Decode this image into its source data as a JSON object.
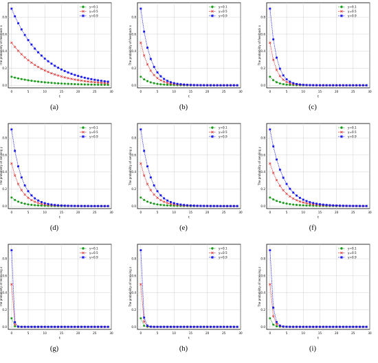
{
  "chart_data": [
    {
      "type": "line",
      "caption": "(a)",
      "ylabel": "The probability of feedback x",
      "xlabel": "t",
      "xlim": [
        -1,
        30
      ],
      "ylim": [
        -0.03,
        0.97
      ],
      "xticks": [
        "0",
        "5",
        "10",
        "15",
        "20",
        "25",
        "30"
      ],
      "yticks": [
        "0.0",
        "0.2",
        "0.4",
        "0.6",
        "0.8"
      ],
      "grid": true,
      "legend_position": "top-right",
      "decay_ratio": 0.9,
      "series": [
        {
          "name": "y=0.1",
          "color": "#1a9a1a",
          "marker": "circle",
          "start": 0.1,
          "values": [
            0.1,
            0.09,
            0.081,
            0.0729,
            0.0656,
            0.059,
            0.0531,
            0.0478,
            0.043,
            0.0387,
            0.0349,
            0.0314,
            0.0282,
            0.0254,
            0.0229,
            0.0206,
            0.0185,
            0.0167,
            0.015,
            0.0135,
            0.0122,
            0.0109,
            0.0098,
            0.0089,
            0.008,
            0.0072,
            0.0065,
            0.0058,
            0.0052,
            0.0047
          ]
        },
        {
          "name": "y=0.5",
          "color": "#e02020",
          "marker": "x",
          "start": 0.5,
          "values": [
            0.5,
            0.45,
            0.405,
            0.3645,
            0.328,
            0.2952,
            0.2657,
            0.2391,
            0.2152,
            0.1937,
            0.1743,
            0.1569,
            0.1412,
            0.1271,
            0.1144,
            0.1029,
            0.0926,
            0.0834,
            0.075,
            0.0675,
            0.0608,
            0.0547,
            0.0492,
            0.0443,
            0.0399,
            0.0359,
            0.0323,
            0.0291,
            0.0262,
            0.0236
          ]
        },
        {
          "name": "y=0.9",
          "color": "#1a1af0",
          "marker": "square",
          "start": 0.9,
          "values": [
            0.9,
            0.81,
            0.729,
            0.6561,
            0.5905,
            0.5314,
            0.4783,
            0.4305,
            0.3874,
            0.3487,
            0.3138,
            0.2824,
            0.2542,
            0.2288,
            0.2059,
            0.1853,
            0.1668,
            0.1501,
            0.1351,
            0.1216,
            0.1094,
            0.0985,
            0.0886,
            0.0798,
            0.0718,
            0.0646,
            0.0581,
            0.0523,
            0.0471,
            0.0424
          ]
        }
      ]
    },
    {
      "type": "line",
      "caption": "(b)",
      "ylabel": "The probability of feedback x",
      "xlabel": "t",
      "xlim": [
        -1,
        30
      ],
      "ylim": [
        -0.03,
        0.97
      ],
      "xticks": [
        "0",
        "5",
        "10",
        "15",
        "20",
        "25",
        "30"
      ],
      "yticks": [
        "0.0",
        "0.2",
        "0.4",
        "0.6",
        "0.8"
      ],
      "grid": true,
      "legend_position": "top-right",
      "decay_ratio": 0.7,
      "series": [
        {
          "name": "y=0.1",
          "color": "#1a9a1a",
          "marker": "circle",
          "start": 0.1
        },
        {
          "name": "y=0.5",
          "color": "#e02020",
          "marker": "x",
          "start": 0.5
        },
        {
          "name": "y=0.9",
          "color": "#1a1af0",
          "marker": "square",
          "start": 0.9
        }
      ]
    },
    {
      "type": "line",
      "caption": "(c)",
      "ylabel": "The probability of feedback x",
      "xlabel": "t",
      "xlim": [
        -1,
        30
      ],
      "ylim": [
        -0.03,
        0.97
      ],
      "xticks": [
        "0",
        "5",
        "10",
        "15",
        "20",
        "25",
        "30"
      ],
      "yticks": [
        "0.0",
        "0.2",
        "0.4",
        "0.6",
        "0.8"
      ],
      "grid": true,
      "legend_position": "top-right",
      "decay_ratio": 0.6,
      "series": [
        {
          "name": "y=0.1",
          "color": "#1a9a1a",
          "marker": "circle",
          "start": 0.1
        },
        {
          "name": "y=0.5",
          "color": "#e02020",
          "marker": "x",
          "start": 0.5
        },
        {
          "name": "y=0.9",
          "color": "#1a1af0",
          "marker": "square",
          "start": 0.9
        }
      ]
    },
    {
      "type": "line",
      "caption": "(d)",
      "ylabel": "The probability of sending y",
      "xlabel": "t",
      "xlim": [
        -1,
        30
      ],
      "ylim": [
        -0.03,
        0.97
      ],
      "xticks": [
        "0",
        "5",
        "10",
        "15",
        "20",
        "25",
        "30"
      ],
      "yticks": [
        "0.0",
        "0.2",
        "0.4",
        "0.6",
        "0.8"
      ],
      "grid": true,
      "legend_position": "top-right",
      "decay_ratio": 0.72,
      "series": [
        {
          "name": "y=0.1",
          "color": "#1a9a1a",
          "marker": "circle",
          "start": 0.1
        },
        {
          "name": "y=0.5",
          "color": "#e02020",
          "marker": "x",
          "start": 0.5
        },
        {
          "name": "y=0.9",
          "color": "#1a1af0",
          "marker": "square",
          "start": 0.9
        }
      ]
    },
    {
      "type": "line",
      "caption": "(e)",
      "ylabel": "The probability of sending y",
      "xlabel": "t",
      "xlim": [
        -1,
        30
      ],
      "ylim": [
        -0.03,
        0.97
      ],
      "xticks": [
        "0",
        "5",
        "10",
        "15",
        "20",
        "25",
        "30"
      ],
      "yticks": [
        "0.0",
        "0.2",
        "0.4",
        "0.6",
        "0.8"
      ],
      "grid": true,
      "legend_position": "top-right",
      "decay_ratio": 0.72,
      "series": [
        {
          "name": "y=0.1",
          "color": "#1a9a1a",
          "marker": "circle",
          "start": 0.1
        },
        {
          "name": "y=0.5",
          "color": "#e02020",
          "marker": "x",
          "start": 0.5
        },
        {
          "name": "y=0.9",
          "color": "#1a1af0",
          "marker": "square",
          "start": 0.9
        }
      ]
    },
    {
      "type": "line",
      "caption": "(f)",
      "ylabel": "The probability of sending y",
      "xlabel": "t",
      "xlim": [
        -1,
        30
      ],
      "ylim": [
        -0.03,
        0.97
      ],
      "xticks": [
        "0",
        "5",
        "10",
        "15",
        "20",
        "25",
        "30"
      ],
      "yticks": [
        "0.0",
        "0.2",
        "0.4",
        "0.6",
        "0.8"
      ],
      "grid": true,
      "legend_position": "top-right",
      "decay_ratio": 0.78,
      "series": [
        {
          "name": "y=0.1",
          "color": "#1a9a1a",
          "marker": "circle",
          "start": 0.1
        },
        {
          "name": "y=0.5",
          "color": "#e02020",
          "marker": "x",
          "start": 0.5
        },
        {
          "name": "y=0.9",
          "color": "#1a1af0",
          "marker": "square",
          "start": 0.9
        }
      ]
    },
    {
      "type": "line",
      "caption": "(g)",
      "ylabel": "The probability of receiving z",
      "xlabel": "t",
      "xlim": [
        -1,
        30
      ],
      "ylim": [
        -0.03,
        0.97
      ],
      "xticks": [
        "0",
        "5",
        "10",
        "15",
        "20",
        "25",
        "30"
      ],
      "yticks": [
        "0.0",
        "0.2",
        "0.4",
        "0.6",
        "0.8"
      ],
      "grid": true,
      "legend_position": "top-right",
      "decay_ratio": 0.06,
      "series": [
        {
          "name": "y=0.1",
          "color": "#1a9a1a",
          "marker": "circle",
          "start": 0.1
        },
        {
          "name": "y=0.5",
          "color": "#e02020",
          "marker": "x",
          "start": 0.5
        },
        {
          "name": "y=0.9",
          "color": "#1a1af0",
          "marker": "square",
          "start": 0.9
        }
      ]
    },
    {
      "type": "line",
      "caption": "(h)",
      "ylabel": "The probability of receiving z",
      "xlabel": "t",
      "xlim": [
        -1,
        30
      ],
      "ylim": [
        -0.03,
        0.97
      ],
      "xticks": [
        "0",
        "5",
        "10",
        "15",
        "20",
        "25",
        "30"
      ],
      "yticks": [
        "0.0",
        "0.2",
        "0.4",
        "0.6",
        "0.8"
      ],
      "grid": true,
      "legend_position": "top-right",
      "decay_ratio": 0.12,
      "series": [
        {
          "name": "y=0.1",
          "color": "#1a9a1a",
          "marker": "circle",
          "start": 0.1
        },
        {
          "name": "y=0.5",
          "color": "#e02020",
          "marker": "x",
          "start": 0.5
        },
        {
          "name": "y=0.9",
          "color": "#1a1af0",
          "marker": "square",
          "start": 0.9
        }
      ]
    },
    {
      "type": "line",
      "caption": "(i)",
      "ylabel": "The probability of receiving z",
      "xlabel": "t",
      "xlim": [
        -1,
        30
      ],
      "ylim": [
        -0.03,
        0.97
      ],
      "xticks": [
        "0",
        "5",
        "10",
        "15",
        "20",
        "25",
        "30"
      ],
      "yticks": [
        "0.0",
        "0.2",
        "0.4",
        "0.6",
        "0.8"
      ],
      "grid": true,
      "legend_position": "top-right",
      "decay_ratio": 0.25,
      "series": [
        {
          "name": "y=0.1",
          "color": "#1a9a1a",
          "marker": "circle",
          "start": 0.1
        },
        {
          "name": "y=0.5",
          "color": "#e02020",
          "marker": "x",
          "start": 0.5
        },
        {
          "name": "y=0.9",
          "color": "#1a1af0",
          "marker": "square",
          "start": 0.9
        }
      ]
    }
  ]
}
